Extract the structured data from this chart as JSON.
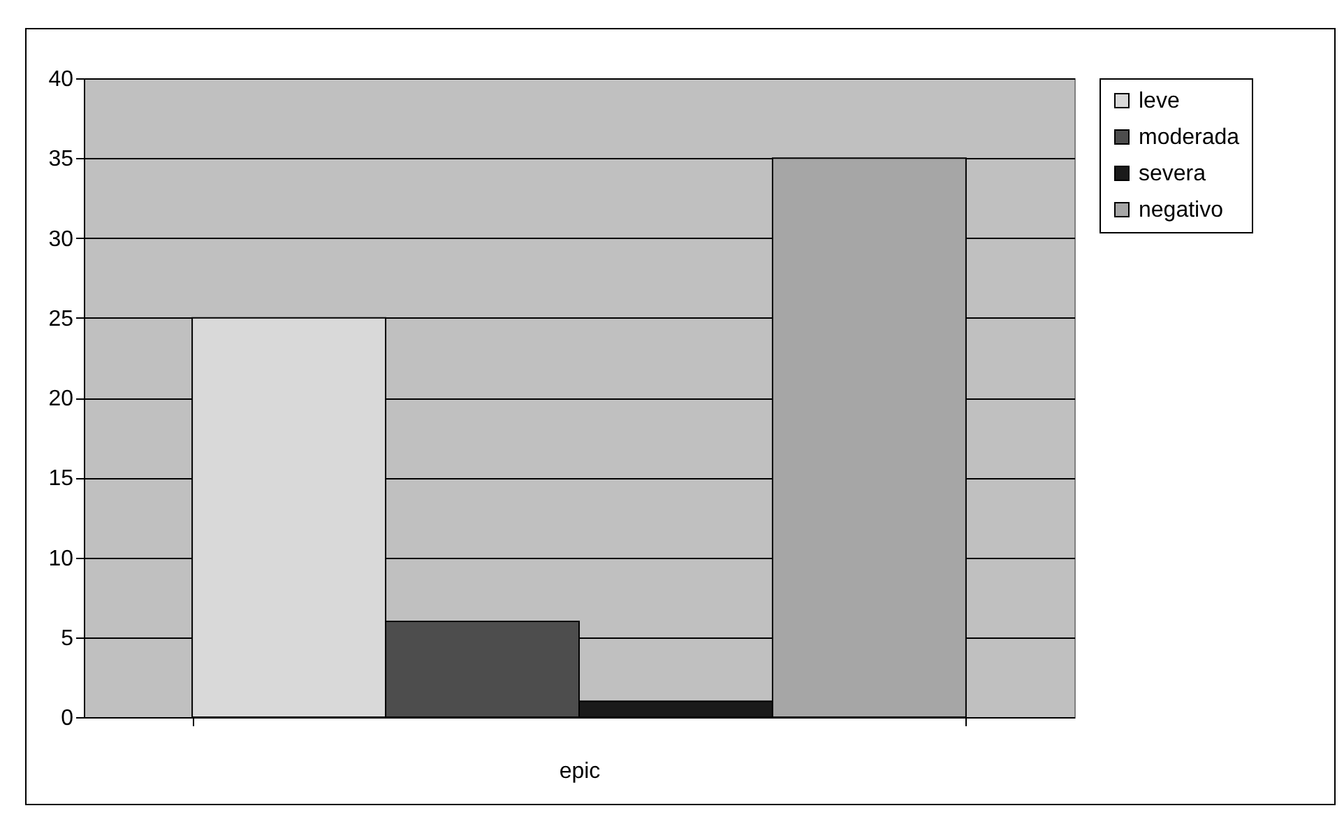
{
  "chart_data": {
    "type": "bar",
    "categories": [
      "epic"
    ],
    "series": [
      {
        "name": "leve",
        "color": "#d9d9d9",
        "values": [
          25
        ]
      },
      {
        "name": "moderada",
        "color": "#4d4d4d",
        "values": [
          6
        ]
      },
      {
        "name": "severa",
        "color": "#1a1a1a",
        "values": [
          1
        ]
      },
      {
        "name": "negativo",
        "color": "#a6a6a6",
        "values": [
          35
        ]
      }
    ],
    "ylim": [
      0,
      40
    ],
    "yticks": [
      0,
      5,
      10,
      15,
      20,
      25,
      30,
      35,
      40
    ],
    "grid": "y",
    "legend": "right"
  }
}
